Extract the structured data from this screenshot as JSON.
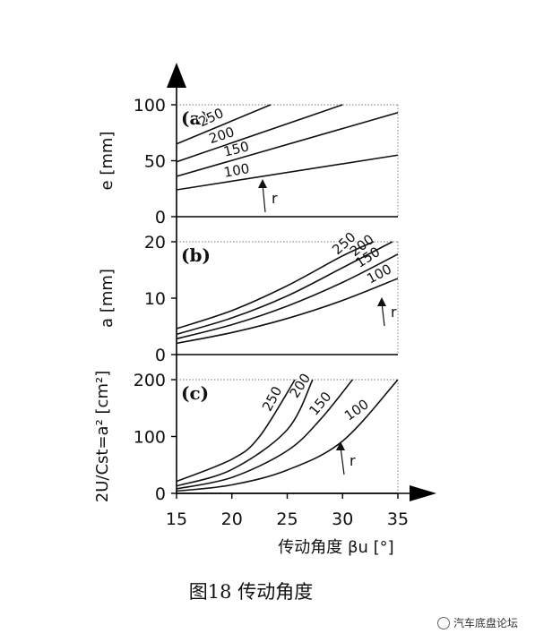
{
  "figure": {
    "caption": "图18  传动角度",
    "watermark": "汽车底盘论坛"
  },
  "chart_data": [
    {
      "id": "a",
      "panel_label": "(a)",
      "type": "line",
      "ylabel": "e [mm]",
      "ylim": [
        0,
        100
      ],
      "yticks": [
        0,
        50,
        100
      ],
      "xlim": [
        15,
        35
      ],
      "annotation": "r",
      "series": [
        {
          "name": "100",
          "x": [
            15,
            35
          ],
          "y": [
            24,
            55
          ]
        },
        {
          "name": "150",
          "x": [
            15,
            35
          ],
          "y": [
            36,
            93
          ]
        },
        {
          "name": "200",
          "x": [
            15,
            30
          ],
          "y": [
            49,
            100
          ]
        },
        {
          "name": "250",
          "x": [
            15,
            23.5
          ],
          "y": [
            65,
            100
          ]
        }
      ]
    },
    {
      "id": "b",
      "panel_label": "(b)",
      "type": "line",
      "ylabel": "a [mm]",
      "ylim": [
        0,
        20
      ],
      "yticks": [
        0,
        10,
        20
      ],
      "xlim": [
        15,
        35
      ],
      "annotation": "r",
      "series": [
        {
          "name": "100",
          "x": [
            15,
            20,
            25,
            30,
            35
          ],
          "y": [
            2.0,
            3.9,
            6.4,
            9.6,
            13.5
          ]
        },
        {
          "name": "150",
          "x": [
            15,
            20,
            25,
            30,
            35
          ],
          "y": [
            2.8,
            5.3,
            8.6,
            12.8,
            17.8
          ]
        },
        {
          "name": "200",
          "x": [
            15,
            20,
            25,
            30,
            34.5
          ],
          "y": [
            3.6,
            6.5,
            10.4,
            15.4,
            20.0
          ]
        },
        {
          "name": "250",
          "x": [
            15,
            20,
            25,
            30,
            32.8
          ],
          "y": [
            4.6,
            7.8,
            12.2,
            17.5,
            20.0
          ]
        }
      ]
    },
    {
      "id": "c",
      "panel_label": "(c)",
      "type": "line",
      "ylabel": "2U/Cst=a² [cm²]",
      "ylim": [
        0,
        200
      ],
      "yticks": [
        0,
        100,
        200
      ],
      "xlim": [
        15,
        35
      ],
      "xticks": [
        15,
        20,
        25,
        30,
        35
      ],
      "xlabel": "传动角度  βu [°]",
      "annotation": "r",
      "series": [
        {
          "name": "100",
          "x": [
            15,
            20,
            25,
            30,
            35
          ],
          "y": [
            4,
            15,
            41,
            92,
            200
          ]
        },
        {
          "name": "150",
          "x": [
            15,
            20,
            25,
            28,
            30.9
          ],
          "y": [
            8,
            28,
            75,
            130,
            200
          ]
        },
        {
          "name": "200",
          "x": [
            15,
            20,
            25,
            27.3
          ],
          "y": [
            13,
            42,
            112,
            200
          ]
        },
        {
          "name": "250",
          "x": [
            15,
            20,
            22.5,
            25.7
          ],
          "y": [
            21,
            60,
            100,
            200
          ]
        }
      ]
    }
  ]
}
